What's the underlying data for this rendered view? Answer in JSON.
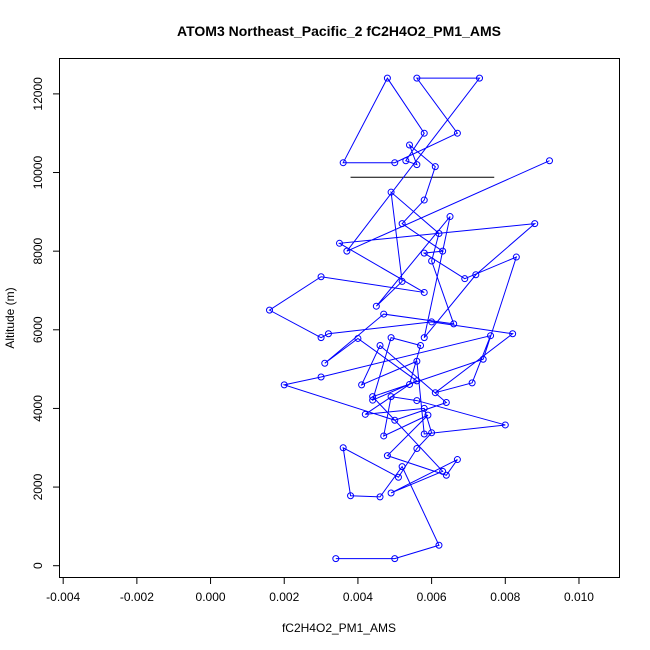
{
  "chart_data": {
    "type": "line",
    "title": "ATOM3 Northeast_Pacific_2 fC2H4O2_PM1_AMS",
    "xlabel": "fC2H4O2_PM1_AMS",
    "ylabel": "Altitude (m)",
    "xlim": [
      -0.0041,
      0.0111
    ],
    "ylim": [
      -300,
      12900
    ],
    "xticks": [
      -0.004,
      -0.002,
      0.0,
      0.002,
      0.004,
      0.006,
      0.008,
      0.01
    ],
    "xtick_labels": [
      "-0.004",
      "-0.002",
      "0.000",
      "0.002",
      "0.004",
      "0.006",
      "0.008",
      "0.010"
    ],
    "yticks": [
      0,
      2000,
      4000,
      6000,
      8000,
      10000,
      12000
    ],
    "ytick_labels": [
      "0",
      "2000",
      "4000",
      "6000",
      "8000",
      "10000",
      "12000"
    ],
    "grid": false,
    "series_color": "#0000ff",
    "extra_segments": [
      {
        "x": [
          0.0038,
          0.0077
        ],
        "y": [
          9880,
          9880
        ],
        "color": "#000000"
      }
    ],
    "series": [
      {
        "x": [
          0.0034,
          0.005,
          0.0062,
          0.0052,
          0.0046,
          0.0038,
          0.0036,
          0.0051,
          0.0056,
          0.006,
          0.0058,
          0.0042,
          0.0054,
          0.0057,
          0.0049,
          0.0044,
          0.0056,
          0.004,
          0.0031,
          0.0047,
          0.0066,
          0.006,
          0.0062,
          0.0049,
          0.0052,
          0.0045,
          0.0065,
          0.0058,
          0.0072,
          0.0088,
          0.0035,
          0.0058,
          0.003,
          0.0016,
          0.003,
          0.0032,
          0.006,
          0.0082,
          0.0061,
          0.0071,
          0.0076,
          0.003,
          0.002,
          0.005,
          0.0064,
          0.0046,
          0.0041,
          0.0056,
          0.0058,
          0.008,
          0.0056,
          0.0049,
          0.0047,
          0.0059,
          0.0048,
          0.0064,
          0.0067,
          0.0049,
          0.0063,
          0.0044,
          0.0074,
          0.0083,
          0.0069,
          0.0058,
          0.0063,
          0.0052,
          0.0058,
          0.0061,
          0.0054,
          0.0056,
          0.0053,
          0.0058,
          0.0048,
          0.0036,
          0.005,
          0.0067,
          0.0056,
          0.0073,
          0.0037,
          0.0092
        ],
        "y": [
          180,
          180,
          520,
          2520,
          1750,
          1780,
          3000,
          2250,
          2980,
          3380,
          4000,
          3850,
          4610,
          5600,
          5800,
          4210,
          4700,
          5780,
          5150,
          6400,
          6150,
          7750,
          8450,
          9500,
          7230,
          6600,
          8880,
          5800,
          7400,
          8700,
          8200,
          6950,
          7350,
          6500,
          5800,
          5900,
          6200,
          5900,
          4400,
          4650,
          5850,
          4800,
          4600,
          3700,
          4150,
          5600,
          4600,
          5200,
          3350,
          3580,
          4200,
          4300,
          3300,
          3830,
          2800,
          2300,
          2700,
          1850,
          2400,
          4300,
          5250,
          7850,
          7300,
          7950,
          8000,
          8700,
          9300,
          10150,
          10700,
          10200,
          10300,
          11000,
          12400,
          10250,
          10250,
          11000,
          12400,
          12400,
          8000,
          10300
        ]
      }
    ]
  }
}
